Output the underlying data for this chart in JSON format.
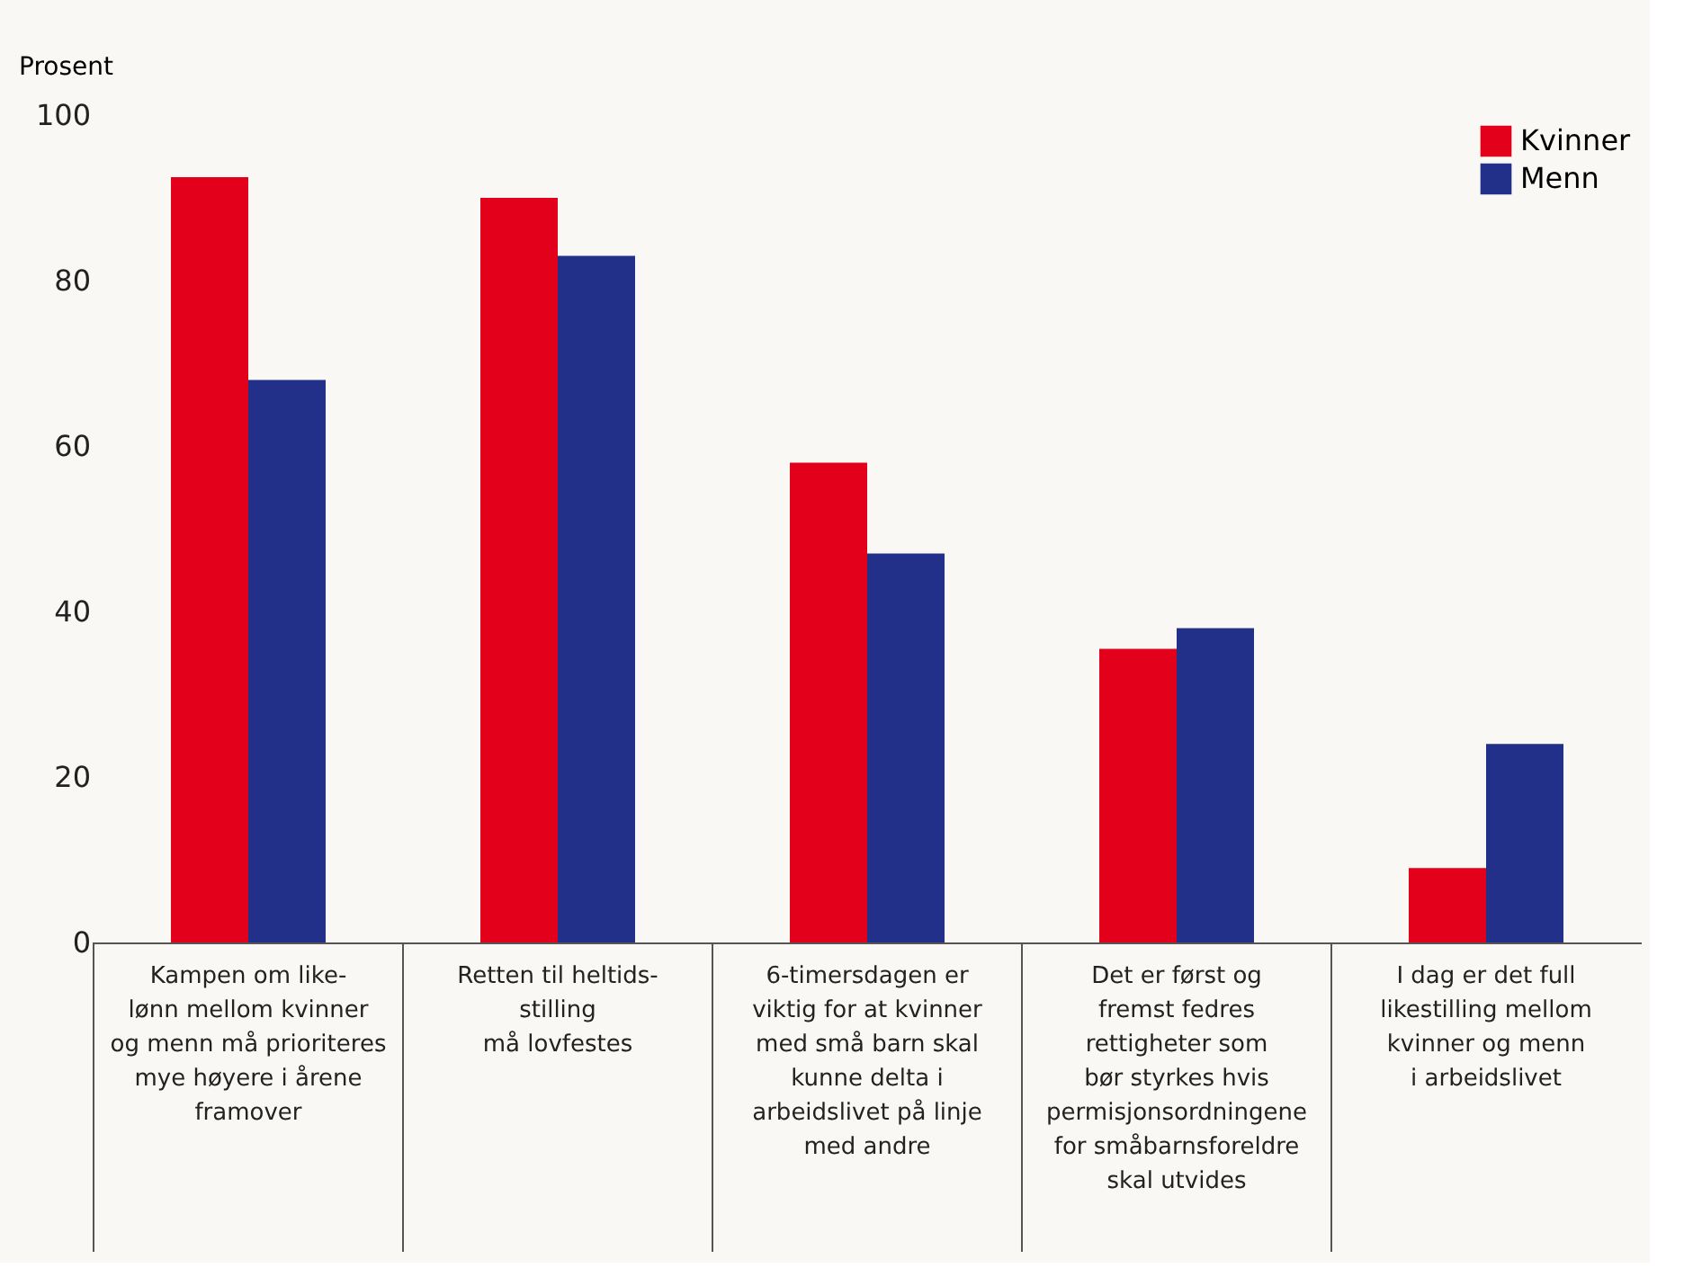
{
  "chart_data": {
    "type": "bar",
    "ylabel": "Prosent",
    "categories": [
      "Kampen om like-\nlønn mellom kvinner\nog menn må prioriteres\nmye høyere i årene\nframover",
      "Retten til heltids-\nstilling\nmå lovfestes",
      "6-timersdagen er\nviktig for at kvinner\nmed små barn skal\nkunne delta i\narbeidslivet på linje\nmed andre",
      "Det er først og\nfremst fedres\nrettigheter som\nbør styrkes hvis\npermisjonsordningene\nfor småbarnsforeldre\nskal utvides",
      "I dag er det full\nlikestilling mellom\nkvinner og menn\ni arbeidslivet"
    ],
    "series": [
      {
        "name": "Kvinner",
        "color": "#e2001a",
        "values": [
          92.5,
          90,
          58,
          35.5,
          9
        ]
      },
      {
        "name": "Menn",
        "color": "#22308a",
        "values": [
          68,
          83,
          47,
          38,
          24
        ]
      }
    ],
    "ylim": [
      0,
      100
    ],
    "yticks": [
      0,
      20,
      40,
      60,
      80,
      100
    ],
    "grid": false,
    "legend": "top right"
  }
}
